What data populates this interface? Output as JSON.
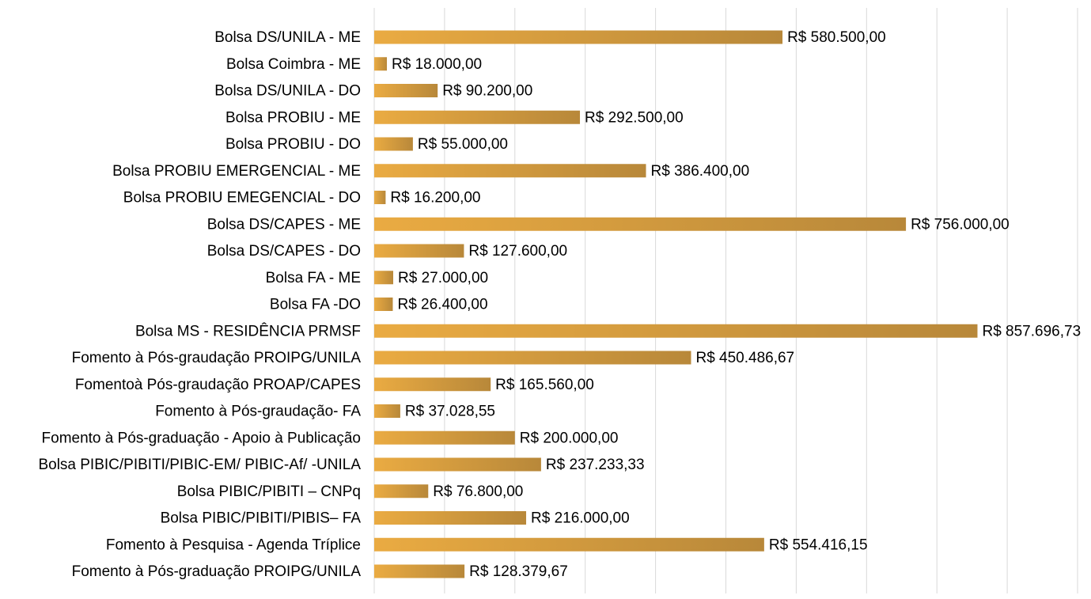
{
  "chart_data": {
    "type": "bar",
    "orientation": "horizontal",
    "categories": [
      "Bolsa DS/UNILA - ME",
      "Bolsa Coimbra - ME",
      "Bolsa DS/UNILA - DO",
      "Bolsa PROBIU - ME",
      "Bolsa PROBIU - DO",
      "Bolsa PROBIU EMERGENCIAL - ME",
      "Bolsa PROBIU EMEGENCIAL - DO",
      "Bolsa DS/CAPES - ME",
      "Bolsa DS/CAPES - DO",
      "Bolsa FA - ME",
      "Bolsa FA -DO",
      "Bolsa MS - RESIDÊNCIA PRMSF",
      "Fomento à Pós-graudação PROIPG/UNILA",
      "Fomentoà Pós-graudação PROAP/CAPES",
      "Fomento à Pós-graudação- FA",
      "Fomento à Pós-graduação - Apoio à Publicação",
      "Bolsa PIBIC/PIBITI/PIBIC-EM/ PIBIC-Af/ -UNILA",
      "Bolsa PIBIC/PIBITI – CNPq",
      "Bolsa PIBIC/PIBITI/PIBIS– FA",
      "Fomento à Pesquisa - Agenda Tríplice",
      "Fomento à Pós-graduação PROIPG/UNILA"
    ],
    "values": [
      580500,
      18000,
      90200,
      292500,
      55000,
      386400,
      16200,
      756000,
      127600,
      27000,
      26400,
      857696.73,
      450486.67,
      165560,
      37028.55,
      200000,
      237233.33,
      76800,
      216000,
      554416.15,
      128379.67
    ],
    "value_labels": [
      "R$ 580.500,00",
      "R$ 18.000,00",
      "R$ 90.200,00",
      "R$ 292.500,00",
      "R$ 55.000,00",
      "R$ 386.400,00",
      "R$ 16.200,00",
      "R$ 756.000,00",
      "R$ 127.600,00",
      "R$ 27.000,00",
      "R$ 26.400,00",
      "R$ 857.696,73",
      "R$ 450.486,67",
      "R$ 165.560,00",
      "R$ 37.028,55",
      "R$ 200.000,00",
      "R$ 237.233,33",
      "R$ 76.800,00",
      "R$ 216.000,00",
      "R$ 554.416,15",
      "R$ 128.379,67"
    ],
    "colors": [
      "#eaab42",
      "#b8883a"
    ],
    "xlim": [
      0,
      1000000
    ],
    "xticks": [
      0,
      100000,
      200000,
      300000,
      400000,
      500000,
      600000,
      700000,
      800000,
      900000,
      1000000
    ],
    "grid": true
  }
}
